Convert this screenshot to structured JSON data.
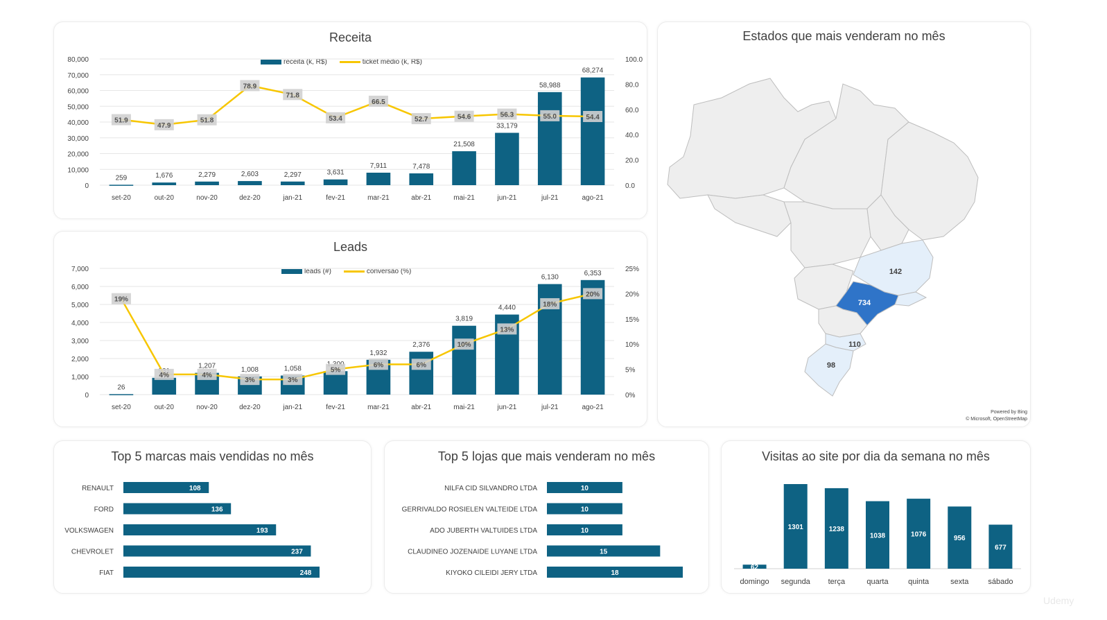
{
  "colors": {
    "bar": "#0e6283",
    "line": "#f7c600",
    "label_bg": "#d0d0d0",
    "map_land": "#eeeeee",
    "map_border": "#bdbdbd",
    "map_high": "#2f74c8",
    "map_mid": "#d6e6f6",
    "map_low": "#e4effa"
  },
  "receita": {
    "title": "Receita",
    "legend_bar": "receita (k, R$)",
    "legend_line": "ticket médio (k, R$)",
    "left_ticks": [
      "0",
      "10,000",
      "20,000",
      "30,000",
      "40,000",
      "50,000",
      "60,000",
      "70,000",
      "80,000"
    ],
    "right_ticks": [
      "0.0",
      "20.0",
      "40.0",
      "60.0",
      "80.0",
      "100.0"
    ]
  },
  "leads": {
    "title": "Leads",
    "legend_bar": "leads (#)",
    "legend_line": "conversão (%)",
    "left_ticks": [
      "0",
      "1,000",
      "2,000",
      "3,000",
      "4,000",
      "5,000",
      "6,000",
      "7,000"
    ],
    "right_ticks": [
      "0%",
      "5%",
      "10%",
      "15%",
      "20%",
      "25%"
    ]
  },
  "mapa": {
    "title": "Estados que mais venderam no mês",
    "attribution_1": "Powered by Bing",
    "attribution_2": "© Microsoft, OpenStreetMap",
    "values": {
      "sp": "734",
      "mg": "142",
      "sc": "110",
      "rs": "98"
    }
  },
  "marcas": {
    "title": "Top 5 marcas mais vendidas no mês"
  },
  "lojas": {
    "title": "Top 5 lojas que mais venderam no mês"
  },
  "visitas": {
    "title": "Visitas ao site por dia da semana no mês"
  },
  "watermark": "Udemy",
  "chart_data": [
    {
      "type": "bar",
      "title": "Receita",
      "categories": [
        "set-20",
        "out-20",
        "nov-20",
        "dez-20",
        "jan-21",
        "fev-21",
        "mar-21",
        "abr-21",
        "mai-21",
        "jun-21",
        "jul-21",
        "ago-21"
      ],
      "series": [
        {
          "name": "receita (k, R$)",
          "type": "bar",
          "axis": "left",
          "values": [
            259,
            1676,
            2279,
            2603,
            2297,
            3631,
            7911,
            7478,
            21508,
            33179,
            58988,
            68274
          ],
          "labels": [
            "259",
            "1,676",
            "2,279",
            "2,603",
            "2,297",
            "3,631",
            "7,911",
            "7,478",
            "21,508",
            "33,179",
            "58,988",
            "68,274"
          ]
        },
        {
          "name": "ticket médio (k, R$)",
          "type": "line",
          "axis": "right",
          "values": [
            51.9,
            47.9,
            51.8,
            78.9,
            71.8,
            53.4,
            66.5,
            52.7,
            54.6,
            56.3,
            55.0,
            54.4
          ],
          "labels": [
            "51.9",
            "47.9",
            "51.8",
            "78.9",
            "71.8",
            "53.4",
            "66.5",
            "52.7",
            "54.6",
            "56.3",
            "55.0",
            "54.4"
          ]
        }
      ],
      "ylim": [
        0,
        80000
      ],
      "y2lim": [
        0,
        100
      ],
      "legend": "top"
    },
    {
      "type": "bar",
      "title": "Leads",
      "categories": [
        "set-20",
        "out-20",
        "nov-20",
        "dez-20",
        "jan-21",
        "fev-21",
        "mar-21",
        "abr-21",
        "mai-21",
        "jun-21",
        "jul-21",
        "ago-21"
      ],
      "series": [
        {
          "name": "leads (#)",
          "type": "bar",
          "axis": "left",
          "values": [
            26,
            931,
            1207,
            1008,
            1058,
            1300,
            1932,
            2376,
            3819,
            4440,
            6130,
            6353
          ],
          "labels": [
            "26",
            "931",
            "1,207",
            "1,008",
            "1,058",
            "1,300",
            "1,932",
            "2,376",
            "3,819",
            "4,440",
            "6,130",
            "6,353"
          ]
        },
        {
          "name": "conversão (%)",
          "type": "line",
          "axis": "right",
          "values": [
            19,
            4,
            4,
            3,
            3,
            5,
            6,
            6,
            10,
            13,
            18,
            20
          ],
          "labels": [
            "19%",
            "4%",
            "4%",
            "3%",
            "3%",
            "5%",
            "6%",
            "6%",
            "10%",
            "13%",
            "18%",
            "20%"
          ]
        }
      ],
      "ylim": [
        0,
        7000
      ],
      "y2lim": [
        0,
        25
      ],
      "legend": "top"
    },
    {
      "type": "bar",
      "orientation": "horizontal",
      "title": "Top 5 marcas mais vendidas no mês",
      "categories": [
        "RENAULT",
        "FORD",
        "VOLKSWAGEN",
        "CHEVROLET",
        "FIAT"
      ],
      "values": [
        108,
        136,
        193,
        237,
        248
      ]
    },
    {
      "type": "bar",
      "orientation": "horizontal",
      "title": "Top 5 lojas que mais venderam no mês",
      "categories": [
        "NILFA CID SILVANDRO LTDA",
        "GERRIVALDO ROSIELEN VALTEIDE LTDA",
        "ADO JUBERTH VALTUIDES LTDA",
        "CLAUDINEO JOZENAIDE LUYANE LTDA",
        "KIYOKO CILEIDI JERY LTDA"
      ],
      "values": [
        10,
        10,
        10,
        15,
        18
      ]
    },
    {
      "type": "bar",
      "title": "Visitas ao site por dia da semana no mês",
      "categories": [
        "domingo",
        "segunda",
        "terça",
        "quarta",
        "quinta",
        "sexta",
        "sábado"
      ],
      "values": [
        62,
        1301,
        1238,
        1038,
        1076,
        956,
        677
      ]
    }
  ]
}
